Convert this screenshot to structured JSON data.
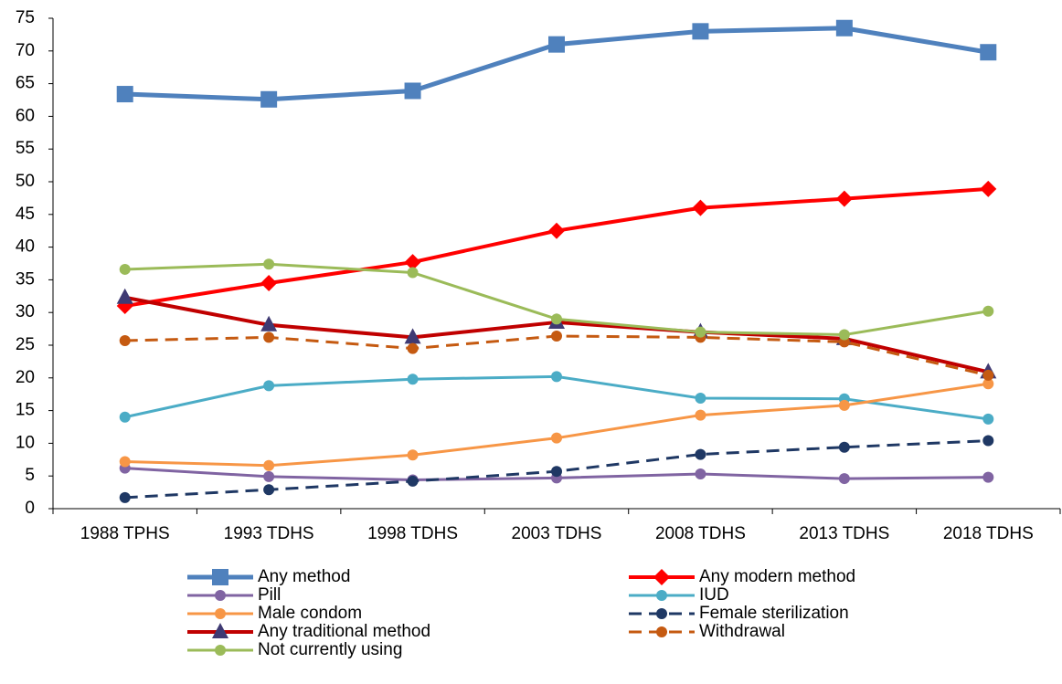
{
  "chart_data": {
    "type": "line",
    "categories": [
      "1988 TPHS",
      "1993 TDHS",
      "1998 TDHS",
      "2003 TDHS",
      "2008 TDHS",
      "2013 TDHS",
      "2018 TDHS"
    ],
    "ylim": [
      0,
      75
    ],
    "yticks": [
      0,
      5,
      10,
      15,
      20,
      25,
      30,
      35,
      40,
      45,
      50,
      55,
      60,
      65,
      70,
      75
    ],
    "grid": false,
    "series": [
      {
        "name": "Any method",
        "color": "#4f81bd",
        "marker": "square",
        "width": 5,
        "values": [
          63.4,
          62.6,
          63.9,
          71.0,
          73.0,
          73.5,
          69.8
        ]
      },
      {
        "name": "Any modern method",
        "color": "#ff0000",
        "marker": "diamond",
        "width": 4,
        "values": [
          31.0,
          34.5,
          37.7,
          42.5,
          46.0,
          47.4,
          48.9
        ]
      },
      {
        "name": "Pill",
        "color": "#8064a2",
        "marker": "circle",
        "width": 3,
        "values": [
          6.2,
          4.9,
          4.4,
          4.7,
          5.3,
          4.6,
          4.8
        ]
      },
      {
        "name": "IUD",
        "color": "#4bacc6",
        "marker": "circle",
        "width": 3,
        "values": [
          14.0,
          18.8,
          19.8,
          20.2,
          16.9,
          16.8,
          13.7
        ]
      },
      {
        "name": "Male condom",
        "color": "#f79646",
        "marker": "circle",
        "width": 3,
        "values": [
          7.2,
          6.6,
          8.2,
          10.8,
          14.3,
          15.8,
          19.1
        ]
      },
      {
        "name": "Female sterilization",
        "color": "#1f3864",
        "marker": "circle",
        "width": 3,
        "dash": true,
        "values": [
          1.7,
          2.9,
          4.2,
          5.7,
          8.3,
          9.4,
          10.4
        ]
      },
      {
        "name": "Any traditional method",
        "color": "#c00000",
        "marker": "triangle",
        "width": 4,
        "values": [
          32.3,
          28.1,
          26.2,
          28.5,
          27.0,
          26.0,
          20.9
        ]
      },
      {
        "name": "Withdrawal",
        "color": "#c55a11",
        "marker": "circle",
        "width": 3,
        "dash": true,
        "values": [
          25.7,
          26.2,
          24.5,
          26.4,
          26.2,
          25.5,
          20.4
        ]
      },
      {
        "name": "Not currently using",
        "color": "#9bbb59",
        "marker": "circle",
        "width": 3,
        "values": [
          36.6,
          37.4,
          36.1,
          29.0,
          27.0,
          26.6,
          30.2
        ]
      }
    ]
  }
}
